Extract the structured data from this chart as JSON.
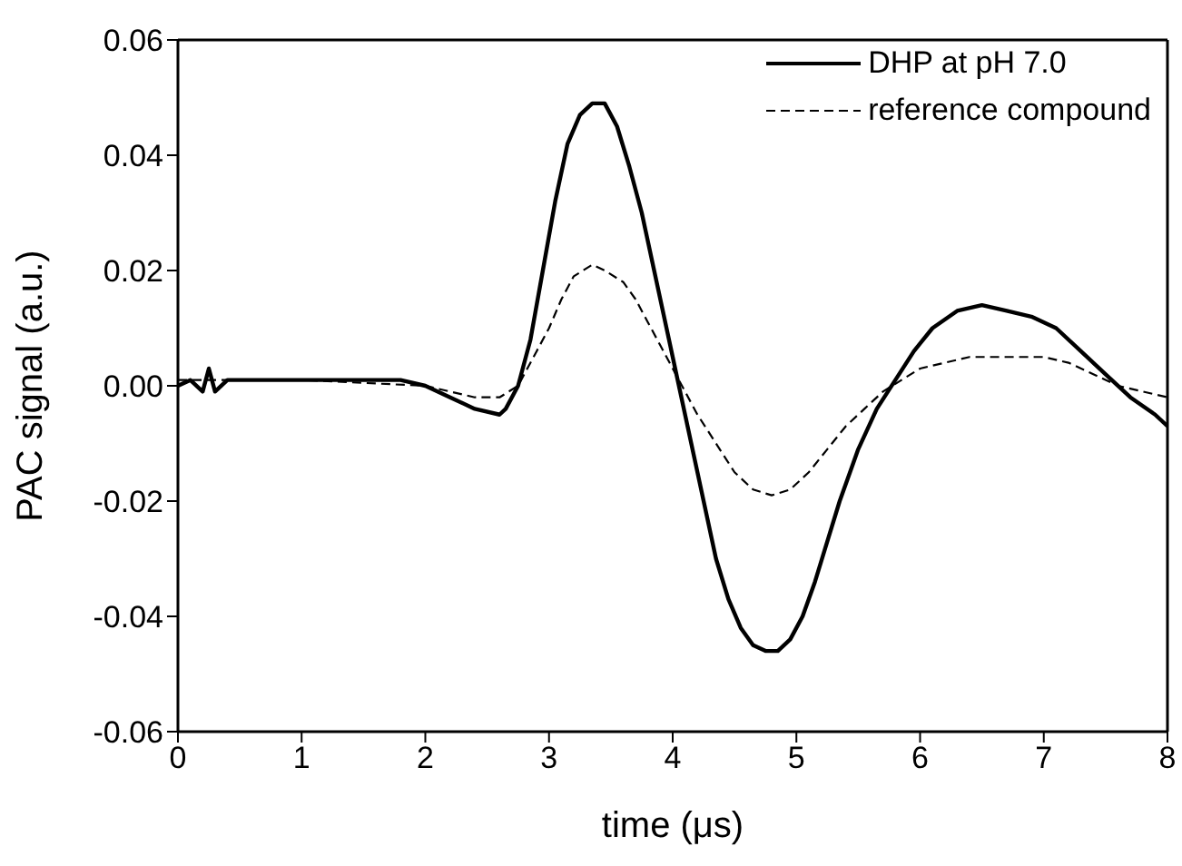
{
  "chart_data": {
    "type": "line",
    "xlabel": "time (μs)",
    "ylabel": "PAC signal (a.u.)",
    "xlim": [
      0,
      8
    ],
    "xticks": [
      0,
      1,
      2,
      3,
      4,
      5,
      6,
      7,
      8
    ],
    "ylim": [
      -0.06,
      0.06
    ],
    "yticks": [
      {
        "value": -0.06,
        "label": "-0.06"
      },
      {
        "value": -0.04,
        "label": "-0.04"
      },
      {
        "value": -0.02,
        "label": "-0.02"
      },
      {
        "value": 0,
        "label": "0.00"
      },
      {
        "value": 0.02,
        "label": "0.02"
      },
      {
        "value": 0.04,
        "label": "0.04"
      },
      {
        "value": 0.06,
        "label": "0.06"
      }
    ],
    "legend": "top right",
    "marker": "none",
    "series": [
      {
        "name": "DHP at pH 7.0",
        "color": "#000000",
        "line_style": "solid",
        "x": [
          0,
          0.1,
          0.2,
          0.25,
          0.3,
          0.4,
          0.5,
          1.0,
          1.5,
          1.8,
          2.0,
          2.2,
          2.4,
          2.6,
          2.65,
          2.75,
          2.85,
          2.95,
          3.05,
          3.15,
          3.25,
          3.35,
          3.45,
          3.55,
          3.65,
          3.75,
          3.85,
          3.95,
          4.05,
          4.15,
          4.25,
          4.35,
          4.45,
          4.55,
          4.65,
          4.75,
          4.85,
          4.95,
          5.05,
          5.15,
          5.25,
          5.35,
          5.5,
          5.65,
          5.8,
          5.95,
          6.1,
          6.3,
          6.5,
          6.7,
          6.9,
          7.1,
          7.3,
          7.5,
          7.7,
          7.9,
          8.0
        ],
        "values": [
          0.0,
          0.001,
          -0.001,
          0.003,
          -0.001,
          0.001,
          0.001,
          0.001,
          0.001,
          0.001,
          0.0,
          -0.002,
          -0.004,
          -0.005,
          -0.004,
          0.0,
          0.008,
          0.02,
          0.032,
          0.042,
          0.047,
          0.049,
          0.049,
          0.045,
          0.038,
          0.03,
          0.02,
          0.01,
          0.0,
          -0.01,
          -0.02,
          -0.03,
          -0.037,
          -0.042,
          -0.045,
          -0.046,
          -0.046,
          -0.044,
          -0.04,
          -0.034,
          -0.027,
          -0.02,
          -0.011,
          -0.004,
          0.001,
          0.006,
          0.01,
          0.013,
          0.014,
          0.013,
          0.012,
          0.01,
          0.006,
          0.002,
          -0.002,
          -0.005,
          -0.007
        ]
      },
      {
        "name": "reference compound",
        "color": "#000000",
        "line_style": "dashed",
        "x": [
          0,
          1,
          2.0,
          2.2,
          2.4,
          2.6,
          2.75,
          2.9,
          3.0,
          3.1,
          3.2,
          3.35,
          3.45,
          3.6,
          3.7,
          3.8,
          3.9,
          4.0,
          4.1,
          4.2,
          4.35,
          4.5,
          4.65,
          4.8,
          4.95,
          5.1,
          5.25,
          5.4,
          5.55,
          5.7,
          5.85,
          6.0,
          6.2,
          6.4,
          6.6,
          6.8,
          7.0,
          7.2,
          7.4,
          7.6,
          7.8,
          8.0
        ],
        "values": [
          0.001,
          0.001,
          0.0,
          -0.001,
          -0.002,
          -0.002,
          0.0,
          0.006,
          0.01,
          0.015,
          0.019,
          0.021,
          0.02,
          0.018,
          0.015,
          0.011,
          0.007,
          0.003,
          -0.001,
          -0.005,
          -0.01,
          -0.015,
          -0.018,
          -0.019,
          -0.018,
          -0.015,
          -0.011,
          -0.007,
          -0.004,
          -0.001,
          0.001,
          0.003,
          0.004,
          0.005,
          0.005,
          0.005,
          0.005,
          0.004,
          0.002,
          0.0,
          -0.001,
          -0.002
        ]
      }
    ]
  }
}
